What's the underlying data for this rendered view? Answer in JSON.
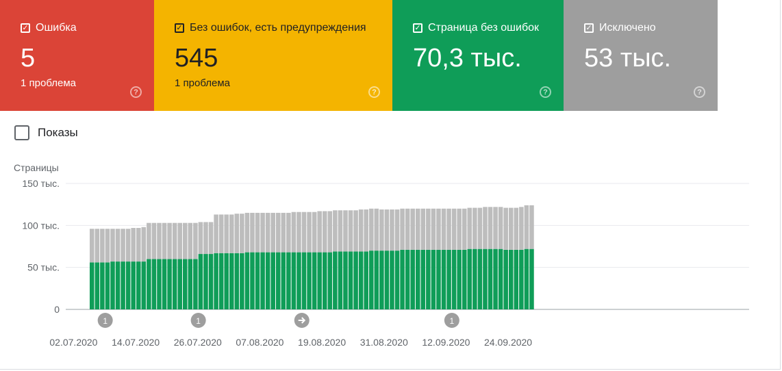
{
  "cards": [
    {
      "label": "Ошибка",
      "value": "5",
      "sub": "1 проблема",
      "color": "#db4437"
    },
    {
      "label": "Без ошибок, есть предупреждения",
      "value": "545",
      "sub": "1 проблема",
      "color": "#f4b400"
    },
    {
      "label": "Страница без ошибок",
      "value": "70,3 тыс.",
      "sub": "",
      "color": "#0f9d58"
    },
    {
      "label": "Исключено",
      "value": "53 тыс.",
      "sub": "",
      "color": "#9e9e9e"
    }
  ],
  "impressions_label": "Показы",
  "chart_data": {
    "type": "bar",
    "ylabel": "Страницы",
    "ylim": [
      0,
      150000
    ],
    "y_ticks": [
      "150 тыс.",
      "100 тыс.",
      "50 тыс.",
      "0"
    ],
    "x_ticks": [
      "02.07.2020",
      "14.07.2020",
      "26.07.2020",
      "07.08.2020",
      "19.08.2020",
      "31.08.2020",
      "12.09.2020",
      "24.09.2020"
    ],
    "grid": true,
    "stacked": true,
    "x_start": "2020-07-03",
    "series": [
      {
        "name": "Страница без ошибок",
        "color": "#0f9d58",
        "values": [
          56000,
          56000,
          56000,
          56000,
          57000,
          57000,
          57000,
          57000,
          57000,
          57000,
          57000,
          60000,
          60000,
          60000,
          60000,
          60000,
          60000,
          60000,
          60000,
          60000,
          60000,
          66000,
          66000,
          66000,
          67000,
          67000,
          67000,
          67000,
          67000,
          67000,
          68000,
          68000,
          68000,
          68000,
          68000,
          68000,
          68000,
          68000,
          68000,
          68000,
          68000,
          68000,
          68000,
          68000,
          68000,
          68000,
          68000,
          69000,
          69000,
          69000,
          69000,
          69000,
          69000,
          69000,
          70000,
          70000,
          70000,
          70000,
          70000,
          70000,
          71000,
          71000,
          71000,
          71000,
          71000,
          71000,
          71000,
          71000,
          71000,
          71000,
          71000,
          71000,
          71000,
          72000,
          72000,
          72000,
          72000,
          72000,
          72000,
          72000,
          71000,
          71000,
          71000,
          71000,
          72000,
          72000
        ]
      },
      {
        "name": "Исключено",
        "color": "#bdbdbd",
        "values": [
          40000,
          40000,
          40000,
          40000,
          39000,
          39000,
          39000,
          39000,
          40000,
          40000,
          41000,
          43000,
          43000,
          43000,
          43000,
          43000,
          43000,
          43000,
          43000,
          43000,
          43000,
          38000,
          38000,
          38000,
          46000,
          46000,
          46000,
          46000,
          47000,
          47000,
          47000,
          47000,
          47000,
          47000,
          47000,
          47000,
          47000,
          47000,
          47000,
          48000,
          48000,
          48000,
          48000,
          48000,
          49000,
          49000,
          49000,
          49000,
          49000,
          49000,
          49000,
          49000,
          50000,
          50000,
          50000,
          50000,
          49000,
          49000,
          49000,
          49000,
          49000,
          49000,
          49000,
          49000,
          49000,
          49000,
          49000,
          49000,
          49000,
          49000,
          49000,
          49000,
          49000,
          49000,
          49000,
          49000,
          50000,
          50000,
          50000,
          50000,
          50000,
          50000,
          50000,
          51000,
          52000,
          52000
        ]
      }
    ],
    "annotations": [
      {
        "date": "2020-07-06",
        "label": "1"
      },
      {
        "date": "2020-07-24",
        "label": "1"
      },
      {
        "date": "2020-08-13",
        "icon": "arrow-right-icon"
      },
      {
        "date": "2020-09-11",
        "label": "1"
      }
    ]
  }
}
